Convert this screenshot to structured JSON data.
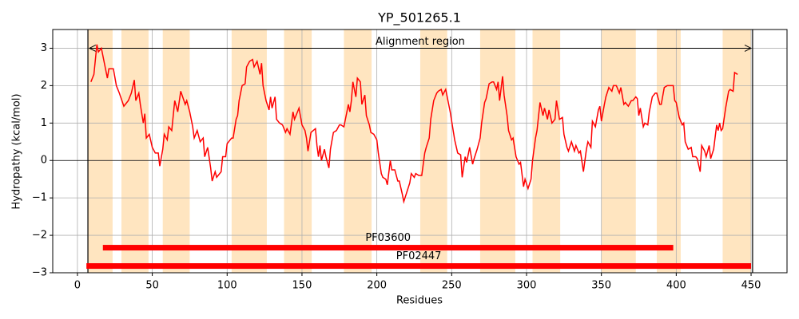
{
  "chart_data": {
    "type": "line",
    "title": "YP_501265.1",
    "x_label": "Residues",
    "y_label": "Hydropathy (kcal/mol)",
    "color": "#ff0000",
    "grid": true,
    "zero_line": 0,
    "xlim": [
      -16.5,
      474
    ],
    "ylim": [
      -3,
      3.5
    ],
    "xticks": [
      0,
      50,
      100,
      150,
      200,
      250,
      300,
      350,
      400,
      450
    ],
    "yticks": [
      {
        "value": -3,
        "label": "−3"
      },
      {
        "value": -2,
        "label": "−2"
      },
      {
        "value": -1,
        "label": "−1"
      },
      0,
      1,
      2,
      3
    ],
    "highlight_regions": [
      [
        7,
        23.5
      ],
      [
        29.4,
        47.5
      ],
      [
        57,
        75
      ],
      [
        103,
        126.5
      ],
      [
        138,
        156.5
      ],
      [
        178,
        196.5
      ],
      [
        229,
        247
      ],
      [
        269,
        292.5
      ],
      [
        304,
        322.5
      ],
      [
        350,
        373
      ],
      [
        387,
        403
      ],
      [
        431,
        450
      ]
    ],
    "highlight_color": "#ffe5c0",
    "boundaries": [
      7,
      451
    ],
    "alignment_region": {
      "label": "Alignment region",
      "start": 8,
      "end": 450,
      "y": 3
    },
    "domains": [
      {
        "name": "PF03600",
        "start": 17,
        "end": 398,
        "y": -2.33
      },
      {
        "name": "PF02447",
        "start": 6,
        "end": 450,
        "y": -2.82
      }
    ],
    "domain_color": "#ff0000",
    "x": [
      9,
      11,
      13,
      14,
      16,
      18,
      20,
      21,
      24,
      26,
      28,
      31,
      34,
      36,
      38,
      39,
      41,
      42,
      44,
      45,
      46,
      48,
      50,
      52,
      54,
      55,
      57,
      58,
      60,
      61,
      63,
      65,
      67,
      69,
      72,
      73,
      75,
      77,
      78,
      80,
      82,
      84,
      85,
      87,
      89,
      90,
      92,
      93,
      96,
      97,
      99,
      100,
      103,
      104,
      106,
      107,
      108,
      110,
      112,
      113,
      115,
      117,
      118,
      120,
      122,
      123,
      124,
      126,
      128,
      129,
      130,
      132,
      133,
      135,
      137,
      139,
      140,
      142,
      144,
      145,
      147,
      148,
      150,
      152,
      153,
      154,
      156,
      159,
      160,
      161,
      162,
      163,
      165,
      166,
      168,
      169,
      171,
      173,
      175,
      176,
      178,
      179,
      181,
      182,
      183,
      184,
      186,
      187,
      189,
      190,
      192,
      193,
      195,
      196,
      198,
      200,
      201,
      203,
      204,
      206,
      207,
      209,
      210,
      212,
      214,
      215,
      217,
      218,
      220,
      222,
      223,
      225,
      226,
      228,
      230,
      232,
      233,
      235,
      236,
      238,
      240,
      241,
      243,
      244,
      246,
      248,
      249,
      251,
      252,
      254,
      256,
      257,
      259,
      260,
      262,
      264,
      265,
      267,
      269,
      270,
      272,
      273,
      275,
      277,
      278,
      280,
      281,
      282,
      284,
      285,
      287,
      288,
      290,
      291,
      293,
      295,
      296,
      298,
      299,
      301,
      303,
      304,
      306,
      307,
      309,
      311,
      312,
      314,
      315,
      317,
      319,
      320,
      322,
      324,
      325,
      327,
      328,
      330,
      332,
      333,
      335,
      336,
      338,
      340,
      341,
      343,
      344,
      346,
      348,
      349,
      350,
      352,
      353,
      355,
      357,
      358,
      360,
      362,
      363,
      365,
      366,
      368,
      370,
      371,
      373,
      374,
      375,
      376,
      378,
      379,
      381,
      382,
      384,
      386,
      387,
      389,
      390,
      392,
      394,
      396,
      398,
      399,
      400,
      402,
      404,
      405,
      406,
      408,
      410,
      411,
      413,
      414,
      416,
      417,
      419,
      420,
      422,
      423,
      425,
      427,
      428,
      429,
      430,
      431,
      433,
      435,
      436,
      438,
      439,
      441
    ],
    "values": [
      2.1,
      2.3,
      3.1,
      2.9,
      3.0,
      2.6,
      2.2,
      2.45,
      2.45,
      2.0,
      1.8,
      1.45,
      1.6,
      1.8,
      2.15,
      1.6,
      1.8,
      1.5,
      1.0,
      1.25,
      0.6,
      0.7,
      0.35,
      0.2,
      0.2,
      -0.15,
      0.3,
      0.7,
      0.55,
      0.9,
      0.8,
      1.6,
      1.3,
      1.85,
      1.5,
      1.6,
      1.3,
      0.9,
      0.6,
      0.8,
      0.5,
      0.6,
      0.1,
      0.35,
      -0.2,
      -0.55,
      -0.3,
      -0.45,
      -0.3,
      0.1,
      0.1,
      0.45,
      0.6,
      0.6,
      1.1,
      1.2,
      1.6,
      2.0,
      2.05,
      2.5,
      2.65,
      2.7,
      2.5,
      2.65,
      2.3,
      2.6,
      2.0,
      1.6,
      1.35,
      1.7,
      1.4,
      1.7,
      1.1,
      1.0,
      0.95,
      0.75,
      0.85,
      0.7,
      1.3,
      1.1,
      1.3,
      1.4,
      0.95,
      0.8,
      0.6,
      0.25,
      0.75,
      0.85,
      0.4,
      0.1,
      0.4,
      0.0,
      0.3,
      0.1,
      -0.2,
      0.3,
      0.75,
      0.8,
      0.95,
      0.95,
      0.9,
      1.1,
      1.5,
      1.3,
      1.6,
      2.1,
      1.7,
      2.2,
      2.1,
      1.5,
      1.75,
      1.2,
      0.95,
      0.75,
      0.7,
      0.55,
      0.2,
      -0.35,
      -0.45,
      -0.5,
      -0.65,
      0.0,
      -0.25,
      -0.25,
      -0.55,
      -0.55,
      -0.9,
      -1.1,
      -0.85,
      -0.6,
      -0.35,
      -0.45,
      -0.35,
      -0.4,
      -0.4,
      0.2,
      0.35,
      0.6,
      1.1,
      1.6,
      1.8,
      1.85,
      1.9,
      1.75,
      1.9,
      1.5,
      1.3,
      0.8,
      0.55,
      0.2,
      0.15,
      -0.45,
      0.1,
      -0.05,
      0.35,
      -0.1,
      0.05,
      0.3,
      0.6,
      1.0,
      1.55,
      1.65,
      2.05,
      2.1,
      2.1,
      1.9,
      2.1,
      1.6,
      2.25,
      1.75,
      1.2,
      0.8,
      0.55,
      0.6,
      0.1,
      -0.1,
      -0.05,
      -0.7,
      -0.5,
      -0.75,
      -0.5,
      0.0,
      0.6,
      0.8,
      1.55,
      1.2,
      1.4,
      1.1,
      1.35,
      1.0,
      1.1,
      1.6,
      1.1,
      1.15,
      0.7,
      0.35,
      0.25,
      0.5,
      0.25,
      0.4,
      0.2,
      0.25,
      -0.3,
      0.3,
      0.5,
      0.35,
      1.05,
      0.9,
      1.35,
      1.45,
      1.05,
      1.5,
      1.7,
      1.95,
      1.85,
      2.0,
      2.0,
      1.8,
      1.95,
      1.5,
      1.55,
      1.45,
      1.6,
      1.6,
      1.7,
      1.65,
      1.2,
      1.4,
      0.9,
      1.0,
      0.95,
      1.3,
      1.7,
      1.8,
      1.8,
      1.5,
      1.5,
      1.95,
      2.0,
      2.0,
      2.0,
      1.6,
      1.55,
      1.15,
      0.95,
      1.0,
      0.5,
      0.3,
      0.35,
      0.1,
      0.1,
      0.05,
      -0.3,
      0.4,
      0.25,
      0.1,
      0.4,
      0.05,
      0.3,
      0.95,
      0.8,
      1.0,
      0.8,
      0.85,
      1.4,
      1.85,
      1.9,
      1.85,
      2.35,
      2.3
    ]
  }
}
